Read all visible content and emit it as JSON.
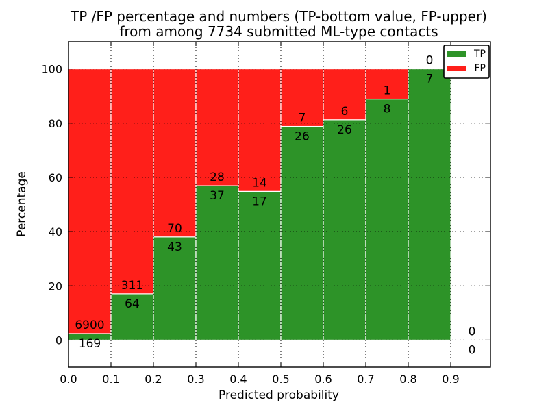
{
  "chart_data": {
    "type": "bar",
    "stacked": true,
    "title_line1": "TP /FP percentage and numbers (TP-bottom value, FP-upper)",
    "title_line2": "from among 7734 submitted ML-type contacts",
    "xlabel": "Predicted probability",
    "ylabel": "Percentage",
    "total_contacts": 7734,
    "bins": [
      {
        "range": "0.0-0.1",
        "tp": 169,
        "fp": 6900
      },
      {
        "range": "0.1-0.2",
        "tp": 64,
        "fp": 311
      },
      {
        "range": "0.2-0.3",
        "tp": 43,
        "fp": 70
      },
      {
        "range": "0.3-0.4",
        "tp": 37,
        "fp": 28
      },
      {
        "range": "0.4-0.5",
        "tp": 17,
        "fp": 14
      },
      {
        "range": "0.5-0.6",
        "tp": 26,
        "fp": 7
      },
      {
        "range": "0.6-0.7",
        "tp": 26,
        "fp": 6
      },
      {
        "range": "0.7-0.8",
        "tp": 8,
        "fp": 1
      },
      {
        "range": "0.8-0.9",
        "tp": 7,
        "fp": 0
      },
      {
        "range": "0.9-1.0",
        "tp": 0,
        "fp": 0
      }
    ],
    "value_note": "bar heights are percentages: tp/(tp+fp)*100 and fp/(tp+fp)*100 per bin; labels show raw counts (TP below, FP above)",
    "xticks": [
      "0.0",
      "0.1",
      "0.2",
      "0.3",
      "0.4",
      "0.5",
      "0.6",
      "0.7",
      "0.8",
      "0.9"
    ],
    "yticks": [
      0,
      20,
      40,
      60,
      80,
      100
    ],
    "xlim": [
      0.0,
      0.993
    ],
    "ylim": [
      -10,
      110
    ],
    "grid": "dotted, both axes",
    "legend": {
      "position": "upper-right",
      "entries": [
        {
          "label": "TP",
          "color": "#2d9328"
        },
        {
          "label": "FP",
          "color": "#ff1f1a"
        }
      ]
    },
    "colors": {
      "tp": "#2d9328",
      "fp": "#ff1f1a",
      "bar_edge": "#ffffff",
      "grid": "#000000",
      "frame": "#000000",
      "background": "#ffffff",
      "text": "#000000"
    }
  }
}
